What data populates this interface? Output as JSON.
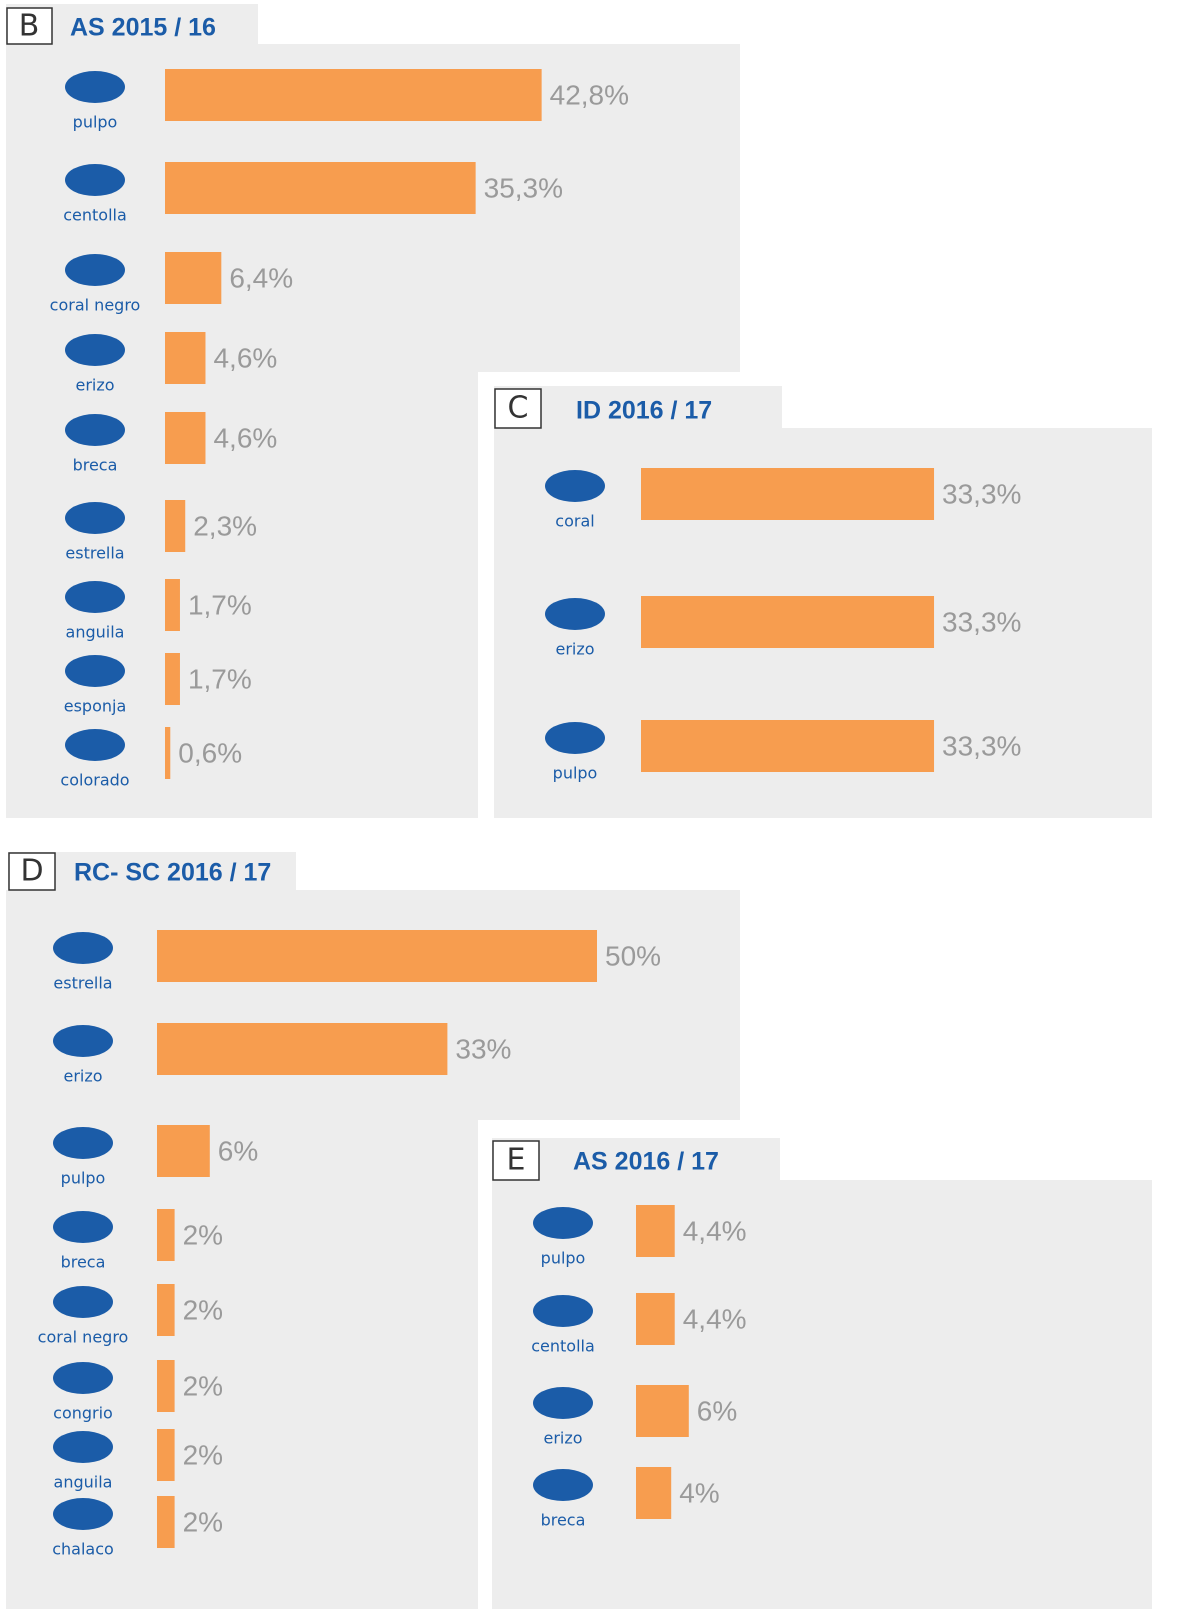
{
  "chart_data": [
    {
      "type": "bar",
      "panel": "B",
      "title": "AS 2015 / 16",
      "color": "#f79d4f",
      "categories": [
        "pulpo",
        "centolla",
        "coral negro",
        "erizo",
        "breca",
        "estrella",
        "anguila",
        "esponja",
        "colorado"
      ],
      "values": [
        42.8,
        35.3,
        6.4,
        4.6,
        4.6,
        2.3,
        1.7,
        1.7,
        0.6
      ],
      "value_labels": [
        "42,8%",
        "35,3%",
        "6,4%",
        "4,6%",
        "4,6%",
        "2,3%",
        "1,7%",
        "1,7%",
        "0,6%"
      ]
    },
    {
      "type": "bar",
      "panel": "C",
      "title": "ID 2016 / 17",
      "color": "#f79d4f",
      "categories": [
        "coral",
        "erizo",
        "pulpo"
      ],
      "values": [
        33.3,
        33.3,
        33.3
      ],
      "value_labels": [
        "33,3%",
        "33,3%",
        "33,3%"
      ]
    },
    {
      "type": "bar",
      "panel": "D",
      "title": "RC- SC 2016 / 17",
      "color": "#f79d4f",
      "categories": [
        "estrella",
        "erizo",
        "pulpo",
        "breca",
        "coral negro",
        "congrio",
        "anguila",
        "chalaco"
      ],
      "values": [
        50,
        33,
        6,
        2,
        2,
        2,
        2,
        2
      ],
      "value_labels": [
        "50%",
        "33%",
        "6%",
        "2%",
        "2%",
        "2%",
        "2%",
        "2%"
      ]
    },
    {
      "type": "bar",
      "panel": "E",
      "title": "AS 2016 / 17",
      "color": "#f79d4f",
      "categories": [
        "pulpo",
        "centolla",
        "erizo",
        "breca"
      ],
      "values": [
        4.4,
        4.4,
        6,
        4
      ],
      "value_labels": [
        "4,4%",
        "4,4%",
        "6%",
        "4%"
      ]
    }
  ]
}
